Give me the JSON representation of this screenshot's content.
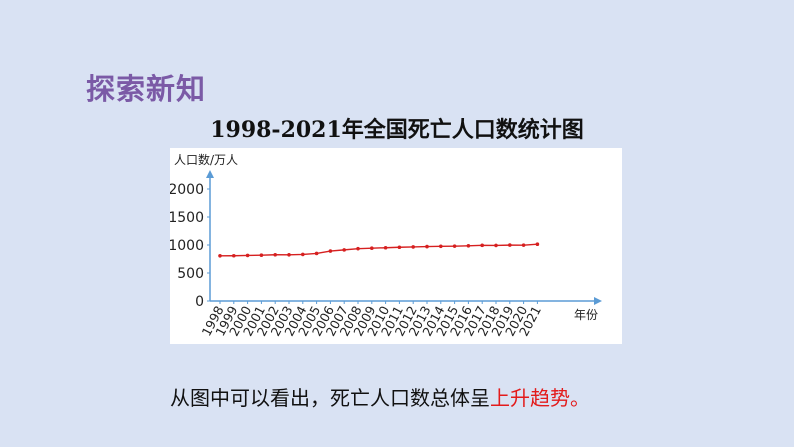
{
  "heading": "探索新知",
  "conclusion": {
    "prefix": "从图中可以看出，死亡人口数总体呈",
    "highlight": "上升趋势。"
  },
  "colors": {
    "background": "#d9e2f3",
    "heading": "#7b5aa6",
    "series": "#d62020",
    "axis": "#5b9bd5",
    "highlight": "#e31b1b"
  },
  "chart_data": {
    "type": "line",
    "title": "1998-2021年全国死亡人口数统计图",
    "ylabel": "人口数/万人",
    "xlabel": "年份",
    "ylim": [
      0,
      2000
    ],
    "yticks": [
      0,
      500,
      1000,
      1500,
      2000
    ],
    "grid": false,
    "categories": [
      "1998",
      "1999",
      "2000",
      "2001",
      "2002",
      "2003",
      "2004",
      "2005",
      "2006",
      "2007",
      "2008",
      "2009",
      "2010",
      "2011",
      "2012",
      "2013",
      "2014",
      "2015",
      "2016",
      "2017",
      "2018",
      "2019",
      "2020",
      "2021"
    ],
    "series": [
      {
        "values": [
          807,
          808,
          814,
          818,
          826,
          825,
          832,
          849,
          892,
          913,
          935,
          943,
          951,
          960,
          966,
          972,
          977,
          979,
          986,
          994,
          993,
          998,
          997,
          1014
        ]
      }
    ]
  }
}
